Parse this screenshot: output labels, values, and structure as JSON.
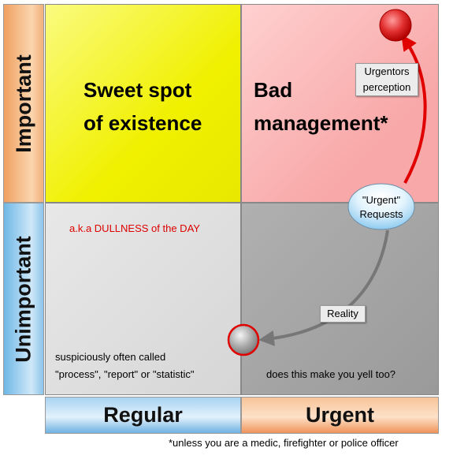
{
  "axes": {
    "rows": [
      "Important",
      "Unimportant"
    ],
    "columns": [
      "Regular",
      "Urgent"
    ]
  },
  "quadrants": {
    "sweet_spot": [
      "Sweet spot",
      "of existence"
    ],
    "bad_management": [
      "Bad",
      "management*"
    ],
    "dullness": {
      "title": "a.k.a DULLNESS of the DAY",
      "note": [
        "suspiciously often called",
        "\"process\", \"report\" or \"statistic\""
      ]
    },
    "yell": "does this make you yell too?"
  },
  "annotations": {
    "urgentors_perception": [
      "Urgentors",
      "perception"
    ],
    "urgent_requests": [
      "\"Urgent\"",
      "Requests"
    ],
    "reality": "Reality"
  },
  "footnote": "*unless you are a medic, firefighter or police officer",
  "colors": {
    "perception_arrow": "#e00000",
    "reality_arrow": "#777777",
    "dullness_title": "#dd0000"
  }
}
